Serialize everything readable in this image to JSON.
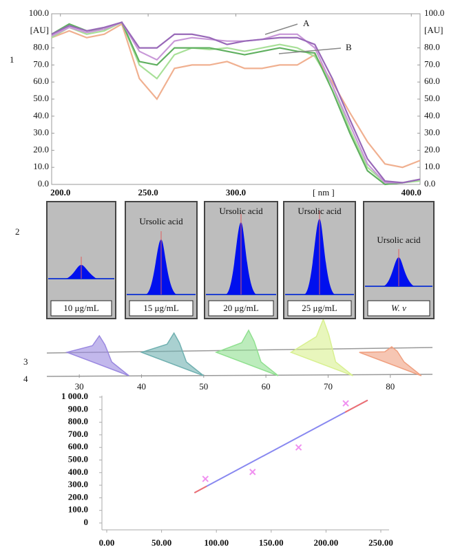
{
  "panel_labels": [
    "1",
    "2",
    "3",
    "4"
  ],
  "chromatogram_panels": [
    {
      "label": "10 μg/mL"
    },
    {
      "label": "15 μg/mL",
      "peak_label": "Ursolic acid"
    },
    {
      "label": "20 μg/mL",
      "peak_label": "Ursolic acid"
    },
    {
      "label": "25 μg/mL",
      "peak_label": "Ursolic acid"
    },
    {
      "label": "W. v",
      "peak_label": "Ursolic acid"
    }
  ],
  "chart_data": [
    {
      "type": "line",
      "xlabel": "[ nm ]",
      "ylabel": "[AU]",
      "annotations": [
        "A",
        "B"
      ],
      "xlim": [
        195,
        405
      ],
      "ylim": [
        0,
        100
      ],
      "xticks": [
        {
          "value": 200,
          "label": "200.0"
        },
        {
          "value": 250,
          "label": "250.0"
        },
        {
          "value": 300,
          "label": "300.0"
        },
        {
          "value": 400,
          "label": "400.0"
        }
      ],
      "yticks": [
        {
          "value": 100,
          "label": "100.0"
        },
        {
          "value": 80,
          "label": "80.0"
        },
        {
          "value": 70,
          "label": "70.0"
        },
        {
          "value": 60,
          "label": "60.0"
        },
        {
          "value": 50,
          "label": "50.0"
        },
        {
          "value": 40,
          "label": "40.0"
        },
        {
          "value": 30,
          "label": "30.0"
        },
        {
          "value": 20,
          "label": "20.0"
        },
        {
          "value": 10,
          "label": "10.0"
        },
        {
          "value": 0,
          "label": "0.0"
        }
      ],
      "x": [
        195,
        205,
        215,
        225,
        235,
        245,
        255,
        265,
        275,
        285,
        295,
        305,
        315,
        325,
        335,
        345,
        355,
        365,
        375,
        385,
        395,
        405
      ],
      "series": [
        {
          "color": "#f0b090",
          "values": [
            86,
            90,
            86,
            88,
            94,
            62,
            50,
            68,
            70,
            70,
            72,
            68,
            68,
            70,
            70,
            76,
            60,
            42,
            25,
            12,
            10,
            14
          ]
        },
        {
          "color": "#a8e098",
          "values": [
            86,
            92,
            88,
            90,
            95,
            70,
            62,
            76,
            80,
            79,
            80,
            78,
            80,
            82,
            80,
            75,
            58,
            32,
            10,
            1,
            1,
            2
          ]
        },
        {
          "color": "#60b060",
          "values": [
            88,
            94,
            90,
            91,
            95,
            72,
            70,
            80,
            80,
            80,
            78,
            76,
            78,
            80,
            78,
            77,
            55,
            30,
            8,
            0,
            1,
            3
          ]
        },
        {
          "color": "#c898d8",
          "values": [
            87,
            92,
            89,
            91,
            95,
            78,
            73,
            84,
            86,
            85,
            84,
            84,
            85,
            88,
            88,
            80,
            58,
            35,
            12,
            1,
            1,
            3
          ]
        },
        {
          "color": "#9868b8",
          "values": [
            88,
            93,
            90,
            92,
            95,
            80,
            80,
            88,
            88,
            86,
            82,
            84,
            85,
            86,
            86,
            82,
            62,
            38,
            15,
            2,
            1,
            3
          ]
        }
      ]
    },
    {
      "type": "peaks",
      "xlim": [
        25,
        87
      ],
      "xticks": [
        30,
        40,
        50,
        60,
        70,
        80
      ],
      "x": [
        33,
        45,
        57,
        69,
        80
      ],
      "values": [
        40,
        45,
        50,
        70,
        20
      ],
      "colors": [
        "#9a88e0",
        "#70b0b0",
        "#90e090",
        "#d8f090",
        "#f0a080"
      ]
    },
    {
      "type": "scatter",
      "xlim": [
        0,
        250
      ],
      "ylim": [
        0,
        1000
      ],
      "xticks": [
        {
          "value": 0,
          "label": "0.00"
        },
        {
          "value": 50,
          "label": "50.00"
        },
        {
          "value": 100,
          "label": "100.00"
        },
        {
          "value": 150,
          "label": "150.00"
        },
        {
          "value": 200,
          "label": "200.00"
        },
        {
          "value": 250,
          "label": "250.00"
        }
      ],
      "yticks": [
        {
          "value": 1000,
          "label": "1 000.0"
        },
        {
          "value": 900,
          "label": "900.0"
        },
        {
          "value": 800,
          "label": "800.0"
        },
        {
          "value": 700,
          "label": "700.0"
        },
        {
          "value": 600,
          "label": "600.0"
        },
        {
          "value": 500,
          "label": "500.0"
        },
        {
          "value": 400,
          "label": "400.0"
        },
        {
          "value": 300,
          "label": "300.0"
        },
        {
          "value": 200,
          "label": "200.0"
        },
        {
          "value": 100,
          "label": "100.0"
        },
        0
      ],
      "x": [
        90,
        133,
        175,
        218
      ],
      "values": [
        350,
        405,
        600,
        950
      ],
      "color": "#f090f0",
      "fit": {
        "x": [
          80,
          238
        ],
        "values": [
          240,
          975
        ],
        "color": "#8888f0",
        "end_color": "#f07070"
      }
    }
  ]
}
